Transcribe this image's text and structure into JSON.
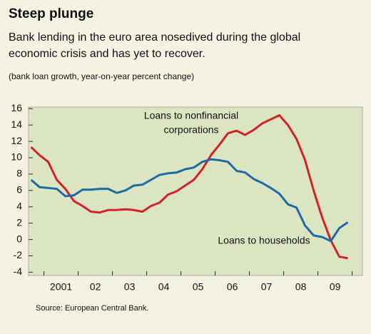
{
  "chart_data": {
    "type": "line",
    "title": "Steep plunge",
    "subtitle": [
      "Bank lending in the euro area nosedived during the global",
      "economic crisis and has yet to recover."
    ],
    "note": "(bank loan growth, year-on-year percent change)",
    "source": "Source: European Central Bank.",
    "x": [
      2000.625,
      2000.875,
      2001.125,
      2001.375,
      2001.625,
      2001.875,
      2002.125,
      2002.375,
      2002.625,
      2002.875,
      2003.125,
      2003.375,
      2003.625,
      2003.875,
      2004.125,
      2004.375,
      2004.625,
      2004.875,
      2005.125,
      2005.375,
      2005.625,
      2005.875,
      2006.125,
      2006.375,
      2006.625,
      2006.875,
      2007.125,
      2007.375,
      2007.625,
      2007.875,
      2008.125,
      2008.375,
      2008.625,
      2008.875,
      2009.125,
      2009.375,
      2009.625,
      2009.875
    ],
    "series": [
      {
        "name": [
          "Loans to nonfinancial",
          "corporations"
        ],
        "color": "#d2232a",
        "values": [
          11.3,
          10.3,
          9.5,
          7.3,
          6.2,
          4.7,
          4.1,
          3.4,
          3.3,
          3.6,
          3.6,
          3.7,
          3.6,
          3.4,
          4.1,
          4.5,
          5.5,
          5.9,
          6.6,
          7.3,
          8.6,
          10.3,
          11.6,
          13.0,
          13.3,
          12.8,
          13.4,
          14.2,
          14.7,
          15.2,
          14.0,
          12.3,
          9.7,
          6.0,
          2.7,
          -0.1,
          -2.1,
          -2.3
        ]
      },
      {
        "name": [
          "Loans to households"
        ],
        "color": "#1f6aa5",
        "values": [
          7.3,
          6.4,
          6.3,
          6.2,
          5.3,
          5.4,
          6.1,
          6.1,
          6.2,
          6.2,
          5.7,
          6.0,
          6.6,
          6.7,
          7.3,
          7.9,
          8.1,
          8.2,
          8.6,
          8.8,
          9.5,
          9.8,
          9.7,
          9.5,
          8.4,
          8.2,
          7.4,
          6.9,
          6.3,
          5.6,
          4.3,
          3.9,
          1.7,
          0.5,
          0.3,
          -0.2,
          1.4,
          2.1
        ]
      }
    ],
    "xlim": [
      2000.55,
      2010.3
    ],
    "xticks": [
      {
        "value": 2001.5,
        "label": "2001"
      },
      {
        "value": 2002.5,
        "label": "02"
      },
      {
        "value": 2003.5,
        "label": "03"
      },
      {
        "value": 2004.5,
        "label": "04"
      },
      {
        "value": 2005.5,
        "label": "05"
      },
      {
        "value": 2006.5,
        "label": "06"
      },
      {
        "value": 2007.5,
        "label": "07"
      },
      {
        "value": 2008.5,
        "label": "08"
      },
      {
        "value": 2009.5,
        "label": "09"
      }
    ],
    "xminorticks": [
      2001,
      2002,
      2003,
      2004,
      2005,
      2006,
      2007,
      2008,
      2009,
      2010
    ],
    "ylim": [
      -4.4,
      16.2
    ],
    "yticks": [
      -4,
      -2,
      0,
      2,
      4,
      6,
      8,
      10,
      12,
      14,
      16
    ],
    "grid": false
  }
}
